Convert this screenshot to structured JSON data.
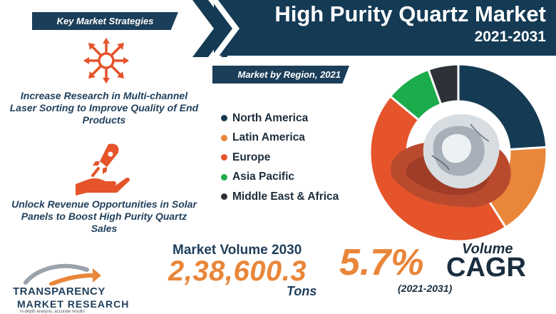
{
  "header": {
    "title": "High Purity Quartz Market",
    "years": "2021-2031"
  },
  "strategies": {
    "label": "Key Market Strategies",
    "items": [
      {
        "text": "Increase Research in Multi-channel Laser Sorting to Improve Quality of End Products",
        "icon": "network-icon"
      },
      {
        "text": "Unlock Revenue Opportunities in Solar Panels to Boost High Purity Quartz Sales",
        "icon": "rocket-hand-icon"
      }
    ]
  },
  "region": {
    "label": "Market by Region, 2021"
  },
  "chart_data": {
    "type": "pie",
    "title": "Market by Region, 2021",
    "categories": [
      "North America",
      "Latin America",
      "Europe",
      "Asia Pacific",
      "Middle East & Africa"
    ],
    "values": [
      24,
      17,
      45,
      8.5,
      5.5
    ],
    "colors": [
      "#143a54",
      "#e9863a",
      "#e5542b",
      "#1cac4b",
      "#2e3238"
    ],
    "donut": true
  },
  "metrics": {
    "volume_label": "Market Volume 2030",
    "volume_value": "2,38,600.3",
    "volume_unit": "Tons",
    "cagr_value": "5.7%",
    "cagr_word_1": "Volume",
    "cagr_word_2": "CAGR",
    "cagr_period": "(2021-2031)"
  },
  "logo": {
    "name_line1": "TRANSPARENCY",
    "name_line2": "MARKET RESEARCH",
    "tagline": "in-depth analysis, accurate results"
  },
  "colors": {
    "navy": "#143a54",
    "orange": "#e9863a",
    "red_orange": "#e5542b",
    "green": "#1cac4b",
    "dark": "#2e3238"
  }
}
